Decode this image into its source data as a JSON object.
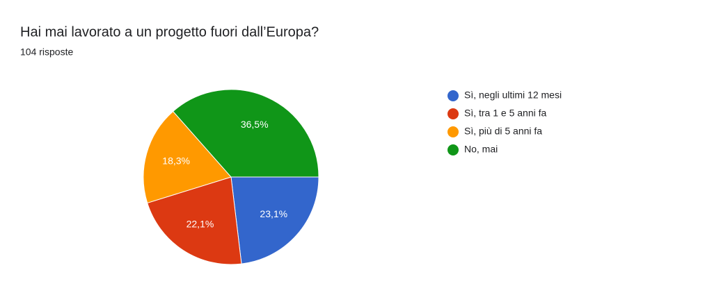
{
  "chart_data": {
    "type": "pie",
    "title": "Hai mai lavorato a un progetto fuori dall’Europa?",
    "subtitle": "104 risposte",
    "categories": [
      "Sì, negli ultimi 12 mesi",
      "Sì, tra 1 e 5 anni fa",
      "Sì, più di 5 anni fa",
      "No, mai"
    ],
    "values": [
      23.1,
      22.1,
      18.3,
      36.5
    ],
    "value_labels": [
      "23,1%",
      "22,1%",
      "18,3%",
      "36,5%"
    ],
    "colors": [
      "#3366cc",
      "#dc3912",
      "#ff9900",
      "#109618"
    ],
    "legend": "right"
  }
}
